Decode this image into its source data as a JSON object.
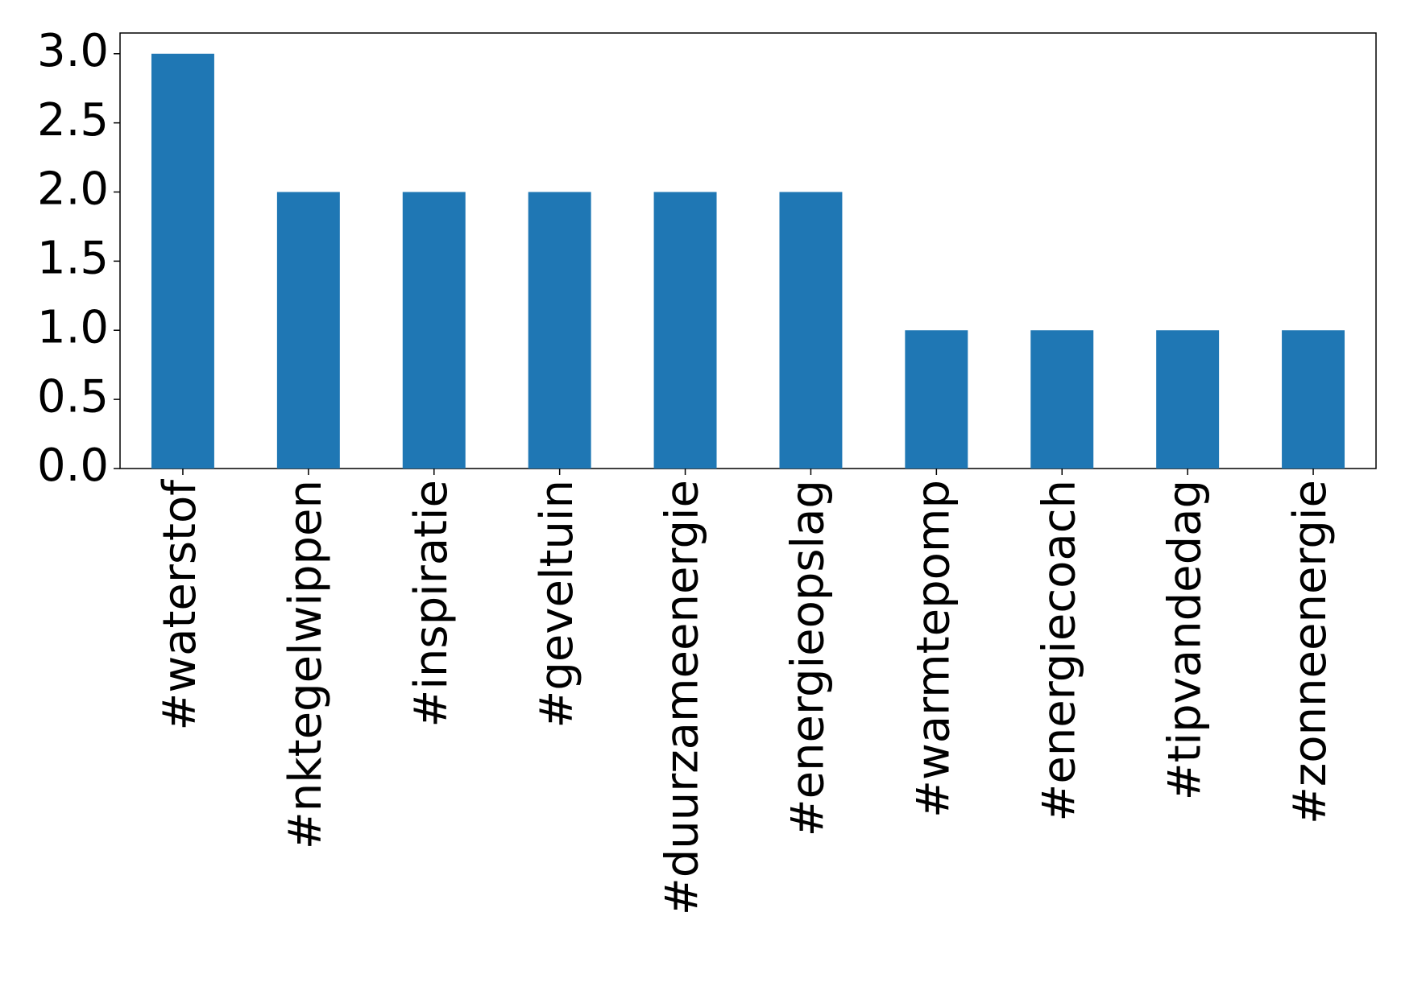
{
  "chart_data": {
    "type": "bar",
    "categories": [
      "#waterstof",
      "#nktegelwippen",
      "#inspiratie",
      "#geveltuin",
      "#duurzameenergie",
      "#energieopslag",
      "#warmtepomp",
      "#energiecoach",
      "#tipvandedag",
      "#zonneenergie"
    ],
    "values": [
      3,
      2,
      2,
      2,
      2,
      2,
      1,
      1,
      1,
      1
    ],
    "color": "#1f77b4",
    "ylim": [
      0,
      3.15
    ],
    "yticks": [
      {
        "value": 0,
        "label": "0.0"
      },
      0.5,
      {
        "value": 1,
        "label": "1.0"
      },
      1.5,
      {
        "value": 2,
        "label": "2.0"
      },
      2.5,
      {
        "value": 3,
        "label": "3.0"
      }
    ],
    "grid": false
  }
}
